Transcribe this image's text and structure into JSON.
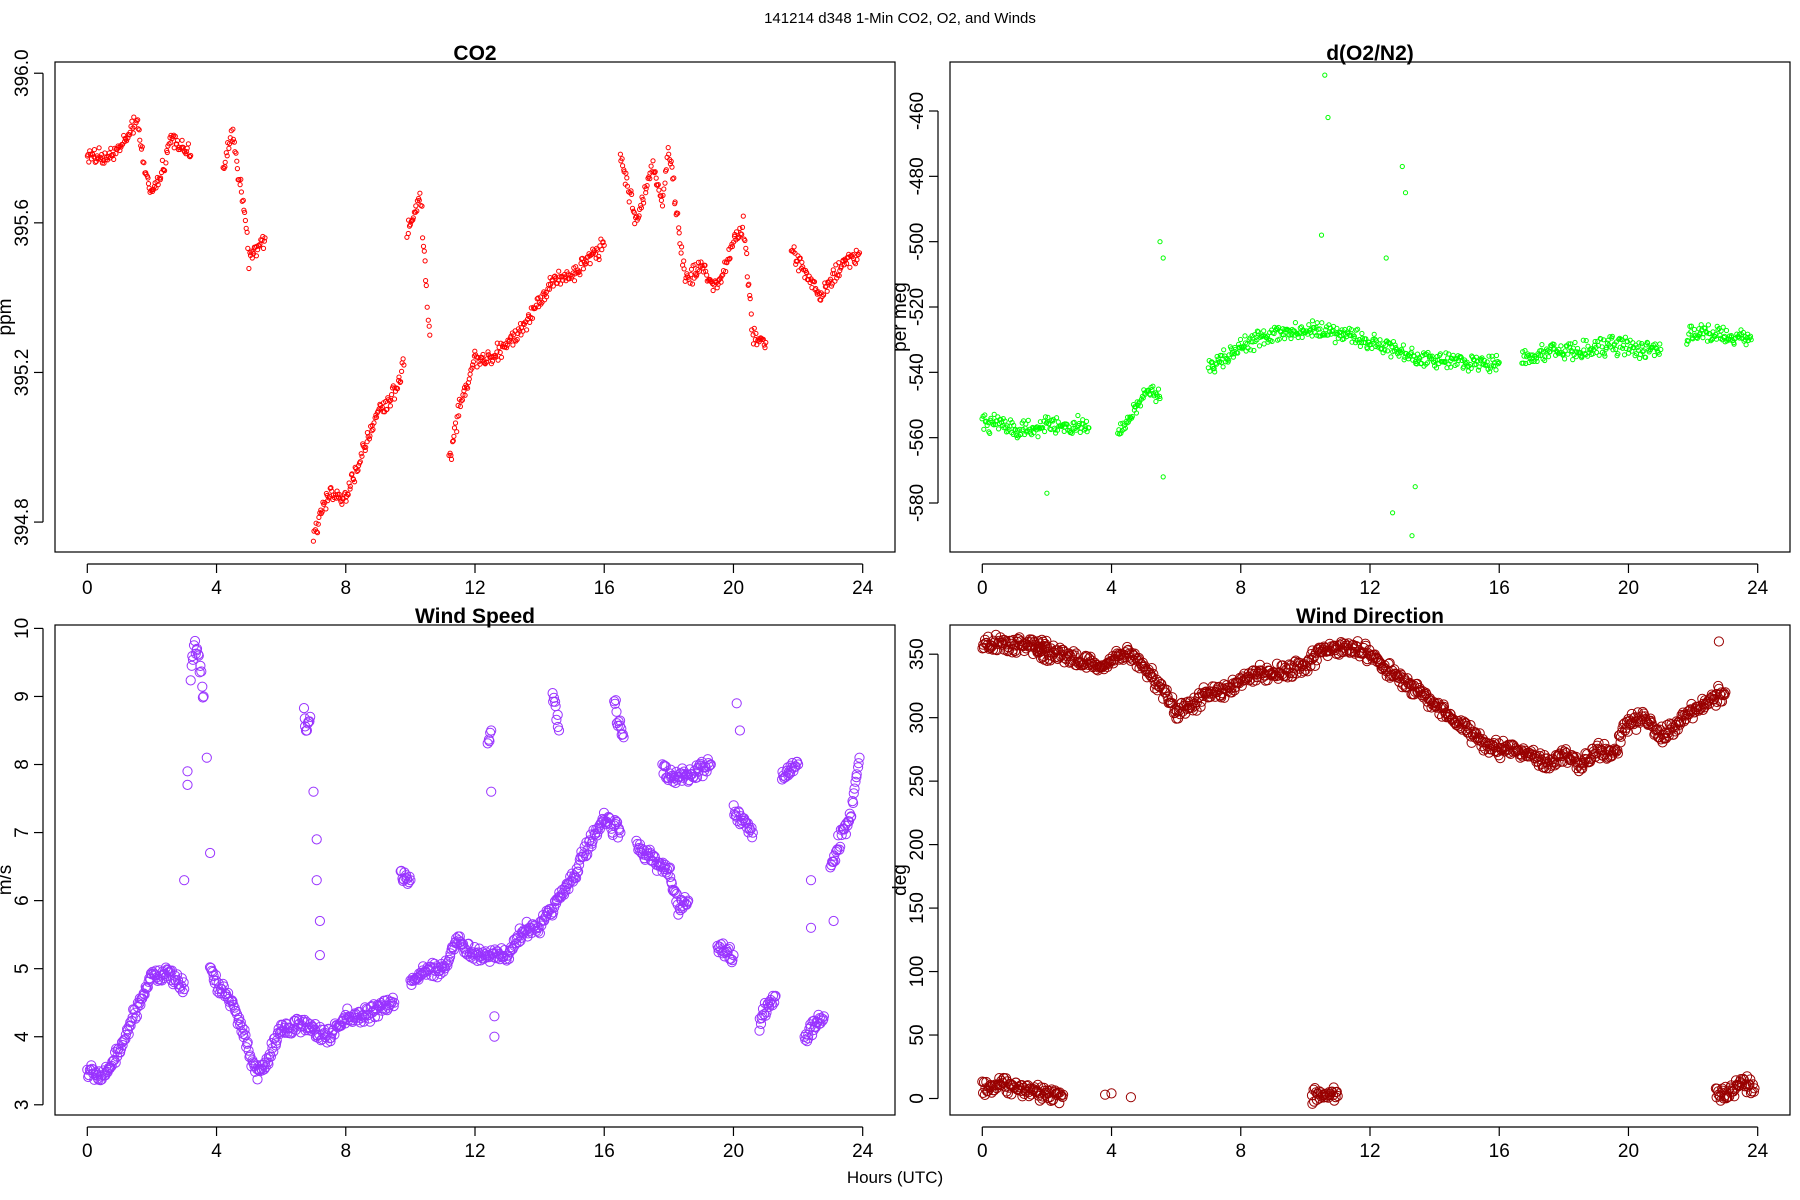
{
  "figure": {
    "title": "141214   d348   1-Min CO2, O2, and Winds",
    "xlabel": "Hours (UTC)"
  },
  "chart_data": [
    {
      "type": "scatter",
      "title": "CO2",
      "xlabel": "",
      "ylabel": "ppm",
      "color": "#ff0000",
      "marker_size": "small",
      "xlim": [
        -1,
        25
      ],
      "ylim": [
        394.72,
        396.03
      ],
      "xticks": [
        "0",
        "4",
        "8",
        "12",
        "16",
        "20",
        "24"
      ],
      "yticks": [
        394.8,
        395.2,
        395.6,
        396.0
      ],
      "ytick_labels": [
        "394.8",
        "395.2",
        "395.6",
        "396.0"
      ],
      "segments": [
        {
          "x": [
            0.0,
            0.5,
            1.0,
            1.3,
            1.5,
            1.8,
            2.0,
            2.3,
            2.6,
            2.9,
            3.2
          ],
          "y": [
            395.78,
            395.77,
            395.8,
            395.83,
            395.88,
            395.74,
            395.68,
            395.73,
            395.84,
            395.8,
            395.78
          ]
        },
        {
          "x": [
            4.2,
            4.5,
            4.7,
            4.9,
            5.0,
            5.2,
            5.5
          ],
          "y": [
            395.75,
            395.84,
            395.72,
            395.62,
            395.5,
            395.52,
            395.56
          ]
        },
        {
          "x": [
            7.0,
            7.5,
            8.0,
            8.5,
            9.0,
            9.5,
            9.8
          ],
          "y": [
            394.76,
            394.88,
            394.86,
            394.98,
            395.1,
            395.14,
            395.22
          ]
        },
        {
          "x": [
            9.9,
            10.1,
            10.3,
            10.6
          ],
          "y": [
            395.58,
            395.62,
            395.68,
            395.3
          ]
        },
        {
          "x": [
            11.2,
            11.5,
            12.0,
            12.5,
            13.0,
            13.5,
            14.0,
            14.5,
            15.0,
            15.5,
            16.0
          ],
          "y": [
            394.96,
            395.1,
            395.24,
            395.24,
            395.28,
            395.32,
            395.4,
            395.45,
            395.46,
            395.5,
            395.54
          ]
        },
        {
          "x": [
            16.5,
            17.0,
            17.5,
            17.8,
            18.0,
            18.5,
            19.0,
            19.5,
            20.0,
            20.3,
            20.6,
            21.0
          ],
          "y": [
            395.78,
            395.6,
            395.76,
            395.66,
            395.8,
            395.45,
            395.48,
            395.42,
            395.55,
            395.6,
            395.3,
            395.28
          ]
        },
        {
          "x": [
            21.8,
            22.3,
            22.7,
            23.0,
            23.5,
            23.9
          ],
          "y": [
            395.52,
            395.46,
            395.4,
            395.44,
            395.5,
            395.52
          ]
        }
      ]
    },
    {
      "type": "scatter",
      "title": "d(O2/N2)",
      "xlabel": "",
      "ylabel": "per meg",
      "color": "#00ff00",
      "marker_size": "small",
      "xlim": [
        -1,
        25
      ],
      "ylim": [
        -595,
        -445
      ],
      "xticks": [
        "0",
        "4",
        "8",
        "12",
        "16",
        "20",
        "24"
      ],
      "yticks": [
        -580,
        -560,
        -540,
        -520,
        -500,
        -480,
        -460
      ],
      "ytick_labels": [
        "-580",
        "-560",
        "-540",
        "-520",
        "-500",
        "-480",
        "-460"
      ],
      "segments": [
        {
          "x": [
            0.0,
            0.5,
            1.0,
            1.5,
            2.0,
            2.5,
            3.0,
            3.3
          ],
          "y": [
            -556,
            -555,
            -557,
            -558,
            -556,
            -557,
            -556,
            -557
          ]
        },
        {
          "x": [
            4.2,
            4.5,
            4.8,
            5.0,
            5.3,
            5.5
          ],
          "y": [
            -558,
            -556,
            -550,
            -547,
            -546,
            -548
          ]
        },
        {
          "x": [
            7.0,
            7.5,
            8.0,
            8.5,
            9.0,
            9.5,
            10.0,
            10.5,
            11.0,
            11.5,
            12.0,
            12.5,
            13.0,
            13.5,
            14.0,
            14.5,
            15.0,
            15.5,
            16.0
          ],
          "y": [
            -538,
            -536,
            -532,
            -530,
            -528,
            -528,
            -527,
            -527,
            -528,
            -529,
            -531,
            -532,
            -534,
            -536,
            -536,
            -537,
            -537,
            -537,
            -537
          ]
        },
        {
          "x": [
            16.7,
            17.0,
            17.5,
            18.0,
            18.5,
            19.0,
            19.5,
            20.0,
            20.5,
            21.0
          ],
          "y": [
            -536,
            -535,
            -534,
            -534,
            -533,
            -533,
            -532,
            -532,
            -533,
            -533
          ]
        },
        {
          "x": [
            21.8,
            22.2,
            22.6,
            23.0,
            23.4,
            23.8
          ],
          "y": [
            -529,
            -528,
            -528,
            -528,
            -529,
            -530
          ]
        }
      ],
      "outliers": [
        {
          "x": 2.0,
          "y": -577
        },
        {
          "x": 5.5,
          "y": -500
        },
        {
          "x": 5.6,
          "y": -505
        },
        {
          "x": 5.6,
          "y": -572
        },
        {
          "x": 10.5,
          "y": -498
        },
        {
          "x": 10.6,
          "y": -449
        },
        {
          "x": 10.7,
          "y": -462
        },
        {
          "x": 12.5,
          "y": -505
        },
        {
          "x": 12.7,
          "y": -583
        },
        {
          "x": 13.0,
          "y": -477
        },
        {
          "x": 13.1,
          "y": -485
        },
        {
          "x": 13.3,
          "y": -590
        },
        {
          "x": 13.4,
          "y": -575
        }
      ]
    },
    {
      "type": "scatter",
      "title": "Wind Speed",
      "xlabel": "",
      "ylabel": "m/s",
      "color": "#9933ff",
      "marker_size": "large",
      "xlim": [
        -1,
        25
      ],
      "ylim": [
        2.85,
        10.05
      ],
      "xticks": [
        "0",
        "4",
        "8",
        "12",
        "16",
        "20",
        "24"
      ],
      "yticks": [
        3,
        4,
        5,
        6,
        7,
        8,
        9,
        10
      ],
      "ytick_labels": [
        "3",
        "4",
        "5",
        "6",
        "7",
        "8",
        "9",
        "10"
      ],
      "segments": [
        {
          "x": [
            0.0,
            0.5,
            1.0,
            1.5,
            2.0,
            2.5,
            3.0
          ],
          "y": [
            3.5,
            3.4,
            3.8,
            4.4,
            4.9,
            4.9,
            4.7
          ]
        },
        {
          "x": [
            3.2,
            3.3,
            3.4,
            3.5,
            3.6
          ],
          "y": [
            9.2,
            9.8,
            9.6,
            9.4,
            9.0
          ]
        },
        {
          "x": [
            3.8,
            4.0,
            4.5,
            5.0,
            5.3,
            5.5,
            6.0,
            6.5,
            7.0,
            7.5,
            8.0,
            8.5,
            9.0,
            9.5
          ],
          "y": [
            5.0,
            4.8,
            4.5,
            3.8,
            3.4,
            3.6,
            4.1,
            4.2,
            4.1,
            4.0,
            4.3,
            4.3,
            4.4,
            4.5
          ]
        },
        {
          "x": [
            6.7,
            6.8,
            6.9
          ],
          "y": [
            8.8,
            8.5,
            8.7
          ]
        },
        {
          "x": [
            9.7,
            9.9,
            10.0
          ],
          "y": [
            6.4,
            6.3,
            6.3
          ]
        },
        {
          "x": [
            10.0,
            10.5,
            11.0,
            11.5,
            12.0,
            12.5,
            13.0,
            13.5,
            14.0,
            14.5,
            15.0,
            15.5,
            16.0,
            16.5
          ],
          "y": [
            4.8,
            5.0,
            5.0,
            5.4,
            5.2,
            5.2,
            5.2,
            5.6,
            5.6,
            6.0,
            6.3,
            6.8,
            7.2,
            7.0
          ]
        },
        {
          "x": [
            12.4,
            12.5
          ],
          "y": [
            8.4,
            8.5
          ]
        },
        {
          "x": [
            14.4,
            14.5,
            14.6
          ],
          "y": [
            9.0,
            8.8,
            8.5
          ]
        },
        {
          "x": [
            16.3,
            16.4,
            16.6
          ],
          "y": [
            9.0,
            8.7,
            8.4
          ]
        },
        {
          "x": [
            17.0,
            17.5,
            18.0,
            18.3,
            18.6
          ],
          "y": [
            6.8,
            6.6,
            6.4,
            5.9,
            6.0
          ]
        },
        {
          "x": [
            17.8,
            18.0,
            19.0,
            19.3
          ],
          "y": [
            8.0,
            7.8,
            7.9,
            8.0
          ]
        },
        {
          "x": [
            19.5,
            20.0
          ],
          "y": [
            5.3,
            5.2
          ]
        },
        {
          "x": [
            20.0,
            20.3,
            20.6
          ],
          "y": [
            7.3,
            7.2,
            7.0
          ]
        },
        {
          "x": [
            20.8,
            21.0,
            21.3
          ],
          "y": [
            4.2,
            4.4,
            4.6
          ]
        },
        {
          "x": [
            21.5,
            21.8,
            22.0
          ],
          "y": [
            7.8,
            7.9,
            8.0
          ]
        },
        {
          "x": [
            22.2,
            22.5,
            22.8
          ],
          "y": [
            4.0,
            4.2,
            4.3
          ]
        },
        {
          "x": [
            23.0,
            23.3,
            23.6,
            23.9
          ],
          "y": [
            6.5,
            6.9,
            7.2,
            8.1
          ]
        }
      ],
      "outliers": [
        {
          "x": 3.0,
          "y": 6.3
        },
        {
          "x": 3.1,
          "y": 7.7
        },
        {
          "x": 3.1,
          "y": 7.9
        },
        {
          "x": 3.7,
          "y": 8.1
        },
        {
          "x": 3.8,
          "y": 6.7
        },
        {
          "x": 7.0,
          "y": 7.6
        },
        {
          "x": 7.1,
          "y": 6.9
        },
        {
          "x": 7.1,
          "y": 6.3
        },
        {
          "x": 7.2,
          "y": 5.7
        },
        {
          "x": 7.2,
          "y": 5.2
        },
        {
          "x": 12.5,
          "y": 7.6
        },
        {
          "x": 12.6,
          "y": 4.0
        },
        {
          "x": 12.6,
          "y": 4.3
        },
        {
          "x": 20.1,
          "y": 8.9
        },
        {
          "x": 20.2,
          "y": 8.5
        },
        {
          "x": 22.4,
          "y": 5.6
        },
        {
          "x": 22.4,
          "y": 6.3
        },
        {
          "x": 23.1,
          "y": 5.7
        }
      ]
    },
    {
      "type": "scatter",
      "title": "Wind Direction",
      "xlabel": "",
      "ylabel": "deg",
      "color": "#990000",
      "marker_size": "large",
      "xlim": [
        -1,
        25
      ],
      "ylim": [
        -13,
        373
      ],
      "xticks": [
        "0",
        "4",
        "8",
        "12",
        "16",
        "20",
        "24"
      ],
      "yticks": [
        0,
        50,
        100,
        150,
        200,
        250,
        300,
        350
      ],
      "ytick_labels": [
        "0",
        "50",
        "100",
        "150",
        "200",
        "250",
        "300",
        "350"
      ],
      "segments": [
        {
          "x": [
            0.0,
            0.5,
            1.0,
            1.5,
            2.0
          ],
          "y": [
            357,
            358,
            358,
            357,
            356
          ]
        },
        {
          "x": [
            1.7,
            2.5,
            3.0,
            3.5,
            4.0,
            4.5,
            5.0,
            5.5,
            6.0,
            6.5,
            7.0,
            7.5,
            8.0,
            8.5,
            9.0,
            9.5,
            10.0,
            10.5,
            11.0,
            11.5,
            12.0,
            12.5,
            13.0,
            13.5,
            14.0,
            14.5,
            15.0,
            15.5,
            16.0,
            16.5,
            17.0,
            17.5,
            18.0,
            18.5,
            19.0,
            19.5,
            20.0,
            20.5,
            21.0,
            21.5,
            22.0,
            22.5,
            23.0
          ],
          "y": [
            352,
            350,
            345,
            340,
            345,
            352,
            340,
            325,
            305,
            310,
            320,
            320,
            330,
            335,
            335,
            338,
            342,
            352,
            355,
            355,
            350,
            340,
            330,
            320,
            310,
            300,
            290,
            280,
            275,
            275,
            270,
            265,
            270,
            265,
            275,
            270,
            295,
            300,
            285,
            295,
            305,
            315,
            320
          ]
        },
        {
          "x": [
            0.0,
            0.3,
            0.6,
            1.0,
            1.5,
            2.0,
            2.5
          ],
          "y": [
            8,
            10,
            12,
            8,
            6,
            4,
            3
          ]
        },
        {
          "x": [
            10.2,
            10.5,
            10.8,
            11.0
          ],
          "y": [
            2,
            3,
            3,
            2
          ]
        },
        {
          "x": [
            22.7,
            23.0,
            23.3,
            23.6,
            23.9
          ],
          "y": [
            5,
            5,
            8,
            12,
            8
          ]
        }
      ],
      "outliers": [
        {
          "x": 3.8,
          "y": 3
        },
        {
          "x": 4.0,
          "y": 4
        },
        {
          "x": 4.6,
          "y": 1
        },
        {
          "x": 22.8,
          "y": 360
        }
      ]
    }
  ]
}
